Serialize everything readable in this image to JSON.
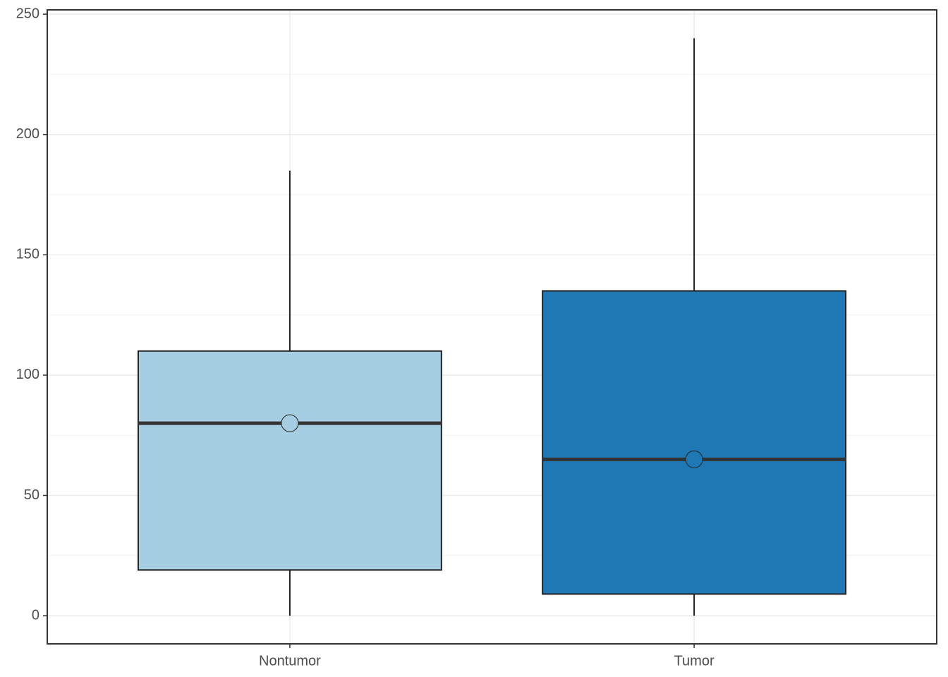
{
  "chart_data": {
    "type": "boxplot",
    "categories": [
      "Nontumor",
      "Tumor"
    ],
    "boxes": [
      {
        "min": 0,
        "q1": 19,
        "median": 80,
        "q3": 110,
        "max": 185,
        "mean": 80,
        "color": "#a6cee3"
      },
      {
        "min": 0,
        "q1": 9,
        "median": 65,
        "q3": 135,
        "max": 240,
        "mean": 65,
        "color": "#1f78b4"
      }
    ],
    "ylim": [
      -11.7,
      251.8
    ],
    "yticks": [
      0,
      50,
      100,
      150,
      200,
      250
    ],
    "grid": true
  }
}
